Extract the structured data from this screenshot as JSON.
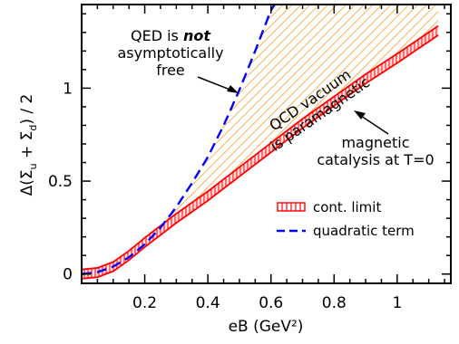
{
  "chart_data": {
    "type": "line",
    "xlabel": "eB (GeV²)",
    "ylabel": "Δ(Σu + Σd) / 2",
    "xlim": [
      0,
      1.17
    ],
    "ylim": [
      -0.05,
      1.45
    ],
    "x_ticks": [
      0.2,
      0.4,
      0.6,
      0.8,
      1.0
    ],
    "x_tick_labels": [
      "0.2",
      "0.4",
      "0.6",
      "0.8",
      "1"
    ],
    "y_ticks": [
      0,
      0.5,
      1.0
    ],
    "y_tick_labels": [
      "0",
      "0.5",
      "1"
    ],
    "series": [
      {
        "name": "cont. limit",
        "color": "#ff0000",
        "style": "band",
        "x": [
          0,
          0.05,
          0.1,
          0.15,
          0.2,
          0.3,
          0.4,
          0.5,
          0.6,
          0.7,
          0.8,
          0.9,
          1.0,
          1.13
        ],
        "y": [
          0.0,
          0.008,
          0.04,
          0.1,
          0.17,
          0.3,
          0.42,
          0.55,
          0.68,
          0.81,
          0.93,
          1.05,
          1.16,
          1.31
        ],
        "band_halfwidth": 0.025
      },
      {
        "name": "quadratic term",
        "color": "#0000ff",
        "style": "dashed",
        "x": [
          0,
          0.05,
          0.1,
          0.15,
          0.2,
          0.25,
          0.3,
          0.35,
          0.4,
          0.45,
          0.5,
          0.55,
          0.6,
          0.62
        ],
        "y": [
          0.0,
          0.01,
          0.04,
          0.09,
          0.16,
          0.25,
          0.36,
          0.49,
          0.63,
          0.8,
          0.99,
          1.2,
          1.42,
          1.47
        ]
      }
    ],
    "shaded_region": {
      "between": [
        "quadratic term",
        "cont. limit"
      ],
      "color": "#f7a02a",
      "pattern": "hatched"
    },
    "annotations": [
      {
        "lines": [
          "QED is ",
          "not",
          "asymptotically",
          "free"
        ],
        "emphasis_index": 1
      },
      {
        "lines": [
          "QCD vacuum",
          "is paramagnetic"
        ]
      },
      {
        "lines": [
          "magnetic",
          "catalysis at T=0"
        ]
      }
    ],
    "legend": {
      "position": "bottom-right"
    }
  }
}
